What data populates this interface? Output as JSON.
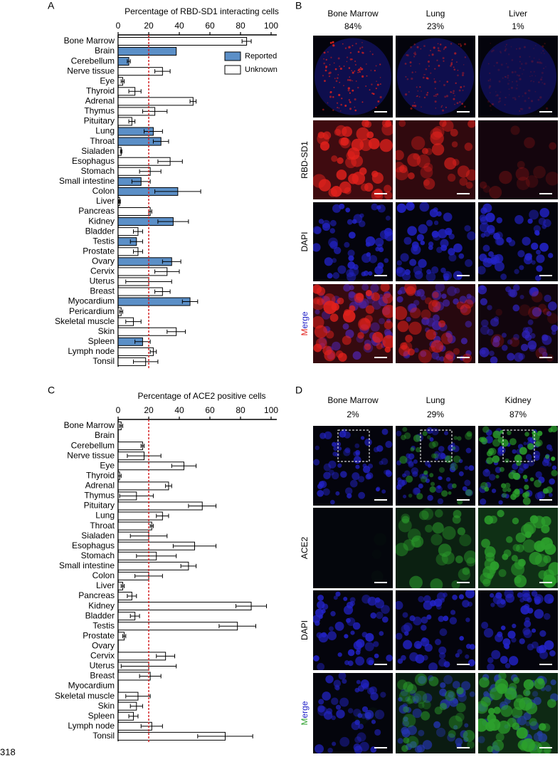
{
  "chart_data": [
    {
      "type": "bar",
      "orientation": "horizontal",
      "title": "Percentage of RBD-SD1 interacting cells",
      "categories": [
        "Bone Marrow",
        "Brain",
        "Cerebellum",
        "Nerve tissue",
        "Eye",
        "Thyroid",
        "Adrenal",
        "Thymus",
        "Pituitary",
        "Lung",
        "Throat",
        "Sialaden",
        "Esophagus",
        "Stomach",
        "Small intestine",
        "Colon",
        "Liver",
        "Pancreas",
        "Kidney",
        "Bladder",
        "Testis",
        "Prostate",
        "Ovary",
        "Cervix",
        "Uterus",
        "Breast",
        "Myocardium",
        "Pericardium",
        "Skeletal muscle",
        "Skin",
        "Spleen",
        "Lymph node",
        "Tonsil"
      ],
      "category_label_colors": [
        "#e3211c",
        "#000000",
        "#000000",
        "#000000",
        "#000000",
        "#000000",
        "#000000",
        "#000000",
        "#000000",
        "#000000",
        "#000000",
        "#000000",
        "#000000",
        "#000000",
        "#000000",
        "#000000",
        "#000000",
        "#000000",
        "#000000",
        "#000000",
        "#000000",
        "#000000",
        "#000000",
        "#000000",
        "#000000",
        "#000000",
        "#000000",
        "#000000",
        "#000000",
        "#000000",
        "#000000",
        "#000000",
        "#000000"
      ],
      "series": [
        {
          "name": "Reported",
          "color": "#5b8fc7",
          "values": [
            null,
            38,
            7,
            null,
            null,
            null,
            null,
            null,
            null,
            23,
            28,
            null,
            null,
            null,
            15,
            39,
            null,
            null,
            36,
            null,
            12,
            null,
            35,
            null,
            null,
            null,
            47,
            null,
            null,
            null,
            16,
            null,
            null
          ],
          "errors": [
            null,
            null,
            1,
            null,
            null,
            null,
            null,
            null,
            null,
            6,
            5,
            null,
            null,
            null,
            6,
            15,
            null,
            null,
            10,
            null,
            4,
            null,
            6,
            null,
            null,
            null,
            5,
            null,
            null,
            null,
            5,
            null,
            null
          ]
        },
        {
          "name": "Unknown",
          "color": "#ffffff",
          "values": [
            84,
            null,
            null,
            29,
            3,
            11,
            49,
            24,
            9,
            null,
            null,
            2,
            34,
            21,
            null,
            null,
            1,
            21,
            null,
            13,
            null,
            13,
            null,
            32,
            20,
            29,
            null,
            2,
            10,
            38,
            null,
            23,
            18
          ],
          "errors": [
            3,
            null,
            null,
            5,
            1,
            4,
            2,
            8,
            2,
            null,
            null,
            0.5,
            8,
            7,
            null,
            null,
            0.5,
            1,
            null,
            3,
            null,
            3,
            null,
            8,
            15,
            5,
            null,
            1,
            5,
            6,
            null,
            2,
            8
          ]
        }
      ],
      "xlim": [
        0,
        100
      ],
      "xticks": [
        0,
        20,
        40,
        60,
        80,
        100
      ],
      "threshold": 20,
      "threshold_color": "#d62728",
      "legend": "upper right"
    },
    {
      "type": "bar",
      "orientation": "horizontal",
      "title": "Percentage of ACE2 positive cells",
      "categories": [
        "Bone Marrow",
        "Brain",
        "Cerebellum",
        "Nerve tissue",
        "Eye",
        "Thyroid",
        "Adrenal",
        "Thymus",
        "Pituitary",
        "Lung",
        "Throat",
        "Sialaden",
        "Esophagus",
        "Stomach",
        "Small intestine",
        "Colon",
        "Liver",
        "Pancreas",
        "Kidney",
        "Bladder",
        "Testis",
        "Prostate",
        "Ovary",
        "Cervix",
        "Uterus",
        "Breast",
        "Myocardium",
        "Skeletal muscle",
        "Skin",
        "Spleen",
        "Lymph node",
        "Tonsil"
      ],
      "category_label_colors": [
        "#e3211c",
        "#000000",
        "#000000",
        "#000000",
        "#000000",
        "#000000",
        "#000000",
        "#000000",
        "#000000",
        "#000000",
        "#000000",
        "#000000",
        "#000000",
        "#000000",
        "#000000",
        "#000000",
        "#000000",
        "#000000",
        "#000000",
        "#000000",
        "#000000",
        "#000000",
        "#000000",
        "#000000",
        "#000000",
        "#000000",
        "#000000",
        "#000000",
        "#000000",
        "#000000",
        "#000000",
        "#000000"
      ],
      "color": "#ffffff",
      "values": [
        2,
        0,
        16,
        17,
        43,
        1,
        33,
        12,
        55,
        29,
        22,
        20,
        50,
        25,
        46,
        20,
        3,
        9,
        87,
        11,
        78,
        4,
        0,
        31,
        20,
        21,
        0,
        13,
        12,
        10,
        22,
        70
      ],
      "errors": [
        1,
        null,
        1,
        11,
        8,
        1,
        2,
        11,
        9,
        4,
        1,
        12,
        14,
        13,
        5,
        9,
        1,
        3,
        10,
        3,
        12,
        1,
        null,
        6,
        18,
        7,
        null,
        8,
        4,
        3,
        7,
        18
      ],
      "xlim": [
        0,
        100
      ],
      "xticks": [
        0,
        20,
        40,
        60,
        80,
        100
      ],
      "threshold": 20,
      "threshold_color": "#d62728"
    }
  ],
  "panel_labels": [
    "A",
    "B",
    "C",
    "D"
  ],
  "image_panels": [
    {
      "columns": [
        {
          "tissue": "Bone Marrow",
          "percentage": "84%"
        },
        {
          "tissue": "Lung",
          "percentage": "23%"
        },
        {
          "tissue": "Liver",
          "percentage": "1%"
        }
      ],
      "rows": [
        "RBD-SD1",
        "DAPI",
        "Merge"
      ],
      "stain_color": "#e3211c",
      "dapi_color": "#2323c8"
    },
    {
      "columns": [
        {
          "tissue": "Bone Marrow",
          "percentage": "2%"
        },
        {
          "tissue": "Lung",
          "percentage": "29%"
        },
        {
          "tissue": "Kidney",
          "percentage": "87%"
        }
      ],
      "rows": [
        "ACE2",
        "DAPI",
        "Merge"
      ],
      "stain_color": "#2ca02c",
      "dapi_color": "#2323c8"
    }
  ],
  "page_number": "318"
}
